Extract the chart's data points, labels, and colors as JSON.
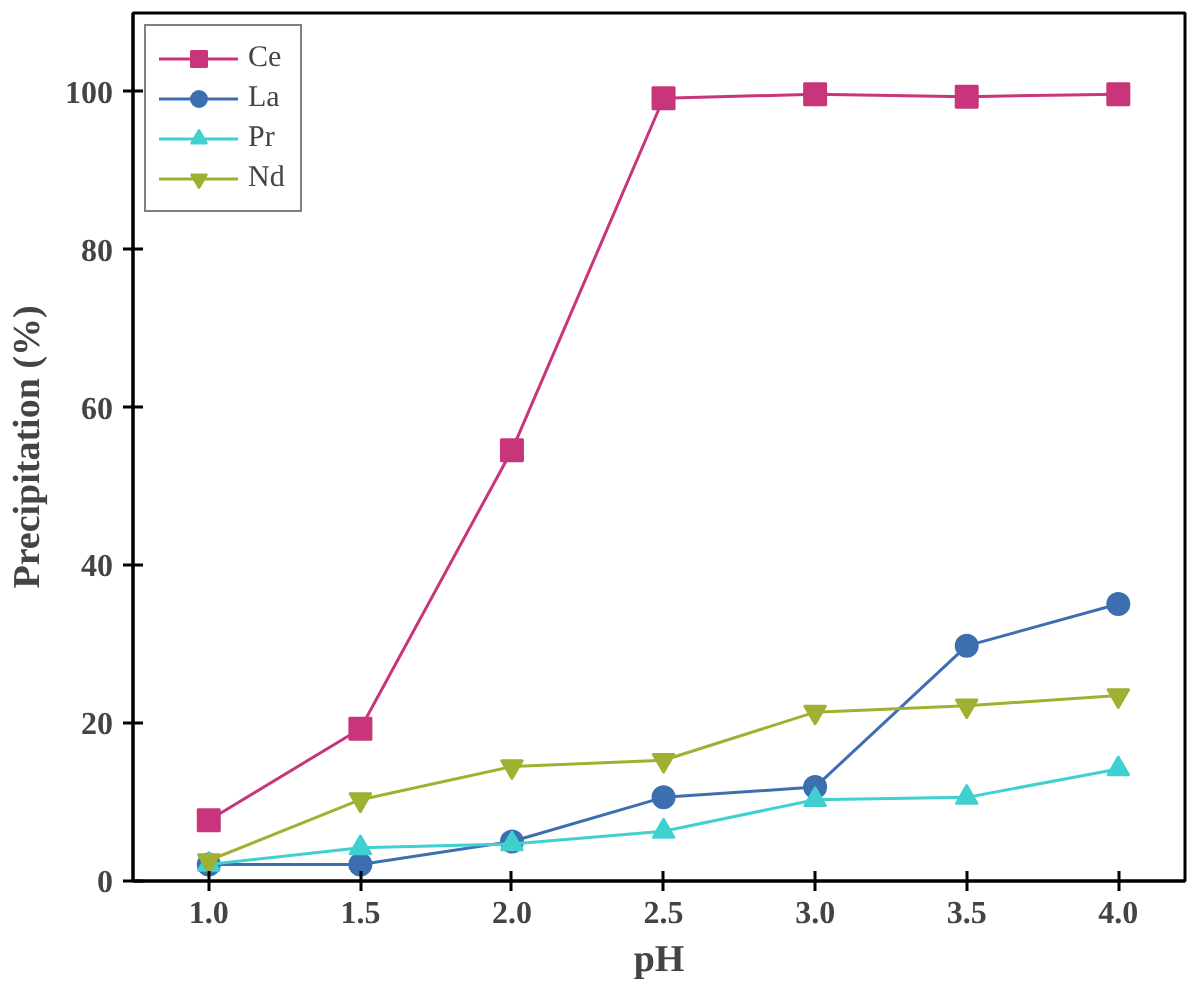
{
  "chart_data": {
    "type": "line",
    "xlabel": "pH",
    "ylabel": "Precipitation (%)",
    "x": [
      1.0,
      1.5,
      2.0,
      2.5,
      3.0,
      3.5,
      4.0
    ],
    "xlim": [
      0.75,
      4.22
    ],
    "xticks": [
      {
        "value": 1.0,
        "label": "1.0"
      },
      {
        "value": 1.5,
        "label": "1.5"
      },
      {
        "value": 2.0,
        "label": "2.0"
      },
      {
        "value": 2.5,
        "label": "2.5"
      },
      {
        "value": 3.0,
        "label": "3.0"
      },
      {
        "value": 3.5,
        "label": "3.5"
      },
      {
        "value": 4.0,
        "label": "4.0"
      }
    ],
    "ylim": [
      0,
      110
    ],
    "yticks": [
      0,
      20,
      40,
      60,
      80,
      100
    ],
    "grid": false,
    "legend": "top left",
    "line_style": "solid",
    "series": [
      {
        "name": "Ce",
        "color": "#c8357a",
        "marker": "square",
        "values": [
          7.7,
          19.3,
          54.6,
          99.2,
          99.7,
          99.4,
          99.7
        ]
      },
      {
        "name": "La",
        "color": "#3d6fb0",
        "marker": "circle",
        "values": [
          2.1,
          2.1,
          5.0,
          10.6,
          11.9,
          29.8,
          35.1
        ]
      },
      {
        "name": "Pr",
        "color": "#40d0d0",
        "marker": "triangle",
        "values": [
          2.1,
          4.2,
          4.7,
          6.3,
          10.3,
          10.6,
          14.2
        ]
      },
      {
        "name": "Nd",
        "color": "#a0b030",
        "marker": "triangle",
        "values": [
          2.6,
          10.3,
          14.5,
          15.3,
          21.4,
          22.2,
          23.5
        ]
      }
    ]
  }
}
